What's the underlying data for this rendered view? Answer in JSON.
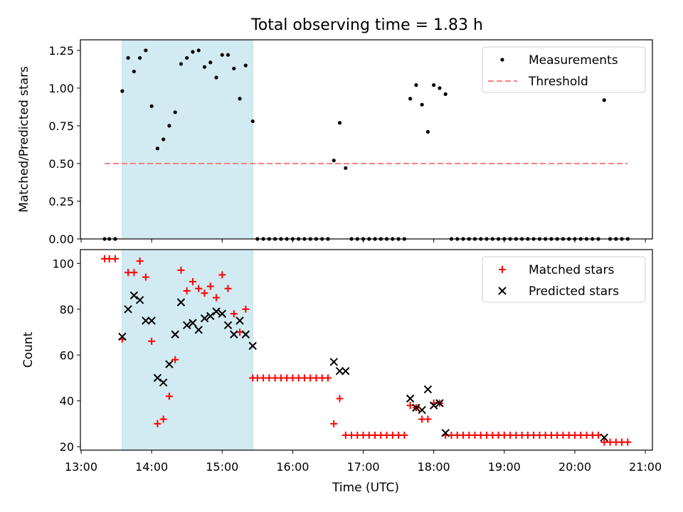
{
  "figure": {
    "title": "Total observing time = 1.83 h"
  },
  "chart_data": [
    {
      "type": "scatter",
      "ylabel": "Matched/Predicted stars",
      "xlabel": "",
      "ylim": [
        0,
        1.32
      ],
      "xlim": [
        "13:00",
        "21:00"
      ],
      "yticks": [
        "0.00",
        "0.25",
        "0.50",
        "0.75",
        "1.00",
        "1.25"
      ],
      "shaded_interval": {
        "from": "13:35",
        "to": "15:26",
        "color": "#add8e6"
      },
      "legend": {
        "position": "top-right",
        "entries": [
          "Measurements",
          "Threshold"
        ]
      },
      "threshold": {
        "name": "Threshold",
        "y": 0.5,
        "x_from": "13:20",
        "x_to": "20:45",
        "color": "#ff7f7f",
        "style": "dashed"
      },
      "series": [
        {
          "name": "Measurements",
          "color": "#000000",
          "points": [
            [
              "13:20",
              0
            ],
            [
              "13:24",
              0
            ],
            [
              "13:29",
              0
            ],
            [
              "13:35",
              0.98
            ],
            [
              "13:40",
              1.2
            ],
            [
              "13:45",
              1.11
            ],
            [
              "13:50",
              1.2
            ],
            [
              "13:55",
              1.25
            ],
            [
              "14:00",
              0.88
            ],
            [
              "14:05",
              0.6
            ],
            [
              "14:10",
              0.66
            ],
            [
              "14:15",
              0.75
            ],
            [
              "14:20",
              0.84
            ],
            [
              "14:25",
              1.16
            ],
            [
              "14:30",
              1.2
            ],
            [
              "14:35",
              1.24
            ],
            [
              "14:40",
              1.25
            ],
            [
              "14:45",
              1.14
            ],
            [
              "14:50",
              1.17
            ],
            [
              "14:55",
              1.07
            ],
            [
              "15:00",
              1.22
            ],
            [
              "15:05",
              1.22
            ],
            [
              "15:10",
              1.13
            ],
            [
              "15:15",
              0.93
            ],
            [
              "15:20",
              1.15
            ],
            [
              "15:26",
              0.78
            ],
            [
              "15:30",
              0
            ],
            [
              "15:35",
              0
            ],
            [
              "15:40",
              0
            ],
            [
              "15:45",
              0
            ],
            [
              "15:50",
              0
            ],
            [
              "15:55",
              0
            ],
            [
              "16:00",
              0
            ],
            [
              "16:05",
              0
            ],
            [
              "16:10",
              0
            ],
            [
              "16:15",
              0
            ],
            [
              "16:20",
              0
            ],
            [
              "16:25",
              0
            ],
            [
              "16:30",
              0
            ],
            [
              "16:35",
              0.52
            ],
            [
              "16:40",
              0.77
            ],
            [
              "16:45",
              0.47
            ],
            [
              "16:50",
              0
            ],
            [
              "16:55",
              0
            ],
            [
              "17:00",
              0
            ],
            [
              "17:05",
              0
            ],
            [
              "17:10",
              0
            ],
            [
              "17:15",
              0
            ],
            [
              "17:20",
              0
            ],
            [
              "17:25",
              0
            ],
            [
              "17:30",
              0
            ],
            [
              "17:35",
              0
            ],
            [
              "17:40",
              0.93
            ],
            [
              "17:45",
              1.02
            ],
            [
              "17:50",
              0.89
            ],
            [
              "17:55",
              0.71
            ],
            [
              "18:00",
              1.02
            ],
            [
              "18:05",
              1.0
            ],
            [
              "18:10",
              0.96
            ],
            [
              "18:15",
              0
            ],
            [
              "18:20",
              0
            ],
            [
              "18:25",
              0
            ],
            [
              "18:30",
              0
            ],
            [
              "18:35",
              0
            ],
            [
              "18:40",
              0
            ],
            [
              "18:45",
              0
            ],
            [
              "18:50",
              0
            ],
            [
              "18:55",
              0
            ],
            [
              "19:00",
              0
            ],
            [
              "19:05",
              0
            ],
            [
              "19:10",
              0
            ],
            [
              "19:15",
              0
            ],
            [
              "19:20",
              0
            ],
            [
              "19:25",
              0
            ],
            [
              "19:30",
              0
            ],
            [
              "19:35",
              0
            ],
            [
              "19:40",
              0
            ],
            [
              "19:45",
              0
            ],
            [
              "19:50",
              0
            ],
            [
              "19:55",
              0
            ],
            [
              "20:00",
              0
            ],
            [
              "20:05",
              0
            ],
            [
              "20:10",
              0
            ],
            [
              "20:15",
              0
            ],
            [
              "20:20",
              0
            ],
            [
              "20:25",
              0.92
            ],
            [
              "20:30",
              0
            ],
            [
              "20:35",
              0
            ],
            [
              "20:40",
              0
            ],
            [
              "20:45",
              0
            ]
          ]
        }
      ]
    },
    {
      "type": "scatter",
      "ylabel": "Count",
      "xlabel": "Time (UTC)",
      "ylim": [
        18.5,
        106
      ],
      "xlim": [
        "13:00",
        "21:00"
      ],
      "yticks": [
        "20",
        "40",
        "60",
        "80",
        "100"
      ],
      "xticks": [
        "13:00",
        "14:00",
        "15:00",
        "16:00",
        "17:00",
        "18:00",
        "19:00",
        "20:00",
        "21:00"
      ],
      "shaded_interval": {
        "from": "13:35",
        "to": "15:26",
        "color": "#add8e6"
      },
      "legend": {
        "position": "top-right",
        "entries": [
          "Matched stars",
          "Predicted stars"
        ]
      },
      "series": [
        {
          "name": "Matched stars",
          "marker": "plus",
          "color": "#ff0000",
          "points": [
            [
              "13:20",
              102
            ],
            [
              "13:24",
              102
            ],
            [
              "13:29",
              102
            ],
            [
              "13:35",
              67
            ],
            [
              "13:40",
              96
            ],
            [
              "13:45",
              96
            ],
            [
              "13:50",
              101
            ],
            [
              "13:55",
              94
            ],
            [
              "14:00",
              66
            ],
            [
              "14:05",
              30
            ],
            [
              "14:10",
              32
            ],
            [
              "14:15",
              42
            ],
            [
              "14:20",
              58
            ],
            [
              "14:25",
              97
            ],
            [
              "14:30",
              88
            ],
            [
              "14:35",
              92
            ],
            [
              "14:40",
              89
            ],
            [
              "14:45",
              87
            ],
            [
              "14:50",
              90
            ],
            [
              "14:55",
              85
            ],
            [
              "15:00",
              95
            ],
            [
              "15:05",
              89
            ],
            [
              "15:10",
              78
            ],
            [
              "15:15",
              70
            ],
            [
              "15:20",
              80
            ],
            [
              "15:26",
              50
            ],
            [
              "15:30",
              50
            ],
            [
              "15:35",
              50
            ],
            [
              "15:40",
              50
            ],
            [
              "15:45",
              50
            ],
            [
              "15:50",
              50
            ],
            [
              "15:55",
              50
            ],
            [
              "16:00",
              50
            ],
            [
              "16:05",
              50
            ],
            [
              "16:10",
              50
            ],
            [
              "16:15",
              50
            ],
            [
              "16:20",
              50
            ],
            [
              "16:25",
              50
            ],
            [
              "16:30",
              50
            ],
            [
              "16:35",
              30
            ],
            [
              "16:40",
              41
            ],
            [
              "16:45",
              25
            ],
            [
              "16:50",
              25
            ],
            [
              "16:55",
              25
            ],
            [
              "17:00",
              25
            ],
            [
              "17:05",
              25
            ],
            [
              "17:10",
              25
            ],
            [
              "17:15",
              25
            ],
            [
              "17:20",
              25
            ],
            [
              "17:25",
              25
            ],
            [
              "17:30",
              25
            ],
            [
              "17:35",
              25
            ],
            [
              "17:40",
              38
            ],
            [
              "17:45",
              37
            ],
            [
              "17:50",
              32
            ],
            [
              "17:55",
              32
            ],
            [
              "18:00",
              39
            ],
            [
              "18:05",
              39
            ],
            [
              "18:10",
              25
            ],
            [
              "18:15",
              25
            ],
            [
              "18:20",
              25
            ],
            [
              "18:25",
              25
            ],
            [
              "18:30",
              25
            ],
            [
              "18:35",
              25
            ],
            [
              "18:40",
              25
            ],
            [
              "18:45",
              25
            ],
            [
              "18:50",
              25
            ],
            [
              "18:55",
              25
            ],
            [
              "19:00",
              25
            ],
            [
              "19:05",
              25
            ],
            [
              "19:10",
              25
            ],
            [
              "19:15",
              25
            ],
            [
              "19:20",
              25
            ],
            [
              "19:25",
              25
            ],
            [
              "19:30",
              25
            ],
            [
              "19:35",
              25
            ],
            [
              "19:40",
              25
            ],
            [
              "19:45",
              25
            ],
            [
              "19:50",
              25
            ],
            [
              "19:55",
              25
            ],
            [
              "20:00",
              25
            ],
            [
              "20:05",
              25
            ],
            [
              "20:10",
              25
            ],
            [
              "20:15",
              25
            ],
            [
              "20:20",
              25
            ],
            [
              "20:25",
              22
            ],
            [
              "20:30",
              22
            ],
            [
              "20:35",
              22
            ],
            [
              "20:40",
              22
            ],
            [
              "20:45",
              22
            ]
          ]
        },
        {
          "name": "Predicted stars",
          "marker": "x",
          "color": "#000000",
          "points": [
            [
              "13:35",
              68
            ],
            [
              "13:40",
              80
            ],
            [
              "13:45",
              86
            ],
            [
              "13:50",
              84
            ],
            [
              "13:55",
              75
            ],
            [
              "14:00",
              75
            ],
            [
              "14:05",
              50
            ],
            [
              "14:10",
              48
            ],
            [
              "14:15",
              56
            ],
            [
              "14:20",
              69
            ],
            [
              "14:25",
              83
            ],
            [
              "14:30",
              73
            ],
            [
              "14:35",
              74
            ],
            [
              "14:40",
              71
            ],
            [
              "14:45",
              76
            ],
            [
              "14:50",
              77
            ],
            [
              "14:55",
              79
            ],
            [
              "15:00",
              78
            ],
            [
              "15:05",
              73
            ],
            [
              "15:10",
              69
            ],
            [
              "15:15",
              75
            ],
            [
              "15:20",
              69
            ],
            [
              "15:26",
              64
            ],
            [
              "16:35",
              57
            ],
            [
              "16:40",
              53
            ],
            [
              "16:45",
              53
            ],
            [
              "17:40",
              41
            ],
            [
              "17:45",
              37
            ],
            [
              "17:50",
              36
            ],
            [
              "17:55",
              45
            ],
            [
              "18:00",
              38
            ],
            [
              "18:05",
              39
            ],
            [
              "18:10",
              26
            ],
            [
              "20:25",
              24
            ]
          ]
        }
      ]
    }
  ]
}
